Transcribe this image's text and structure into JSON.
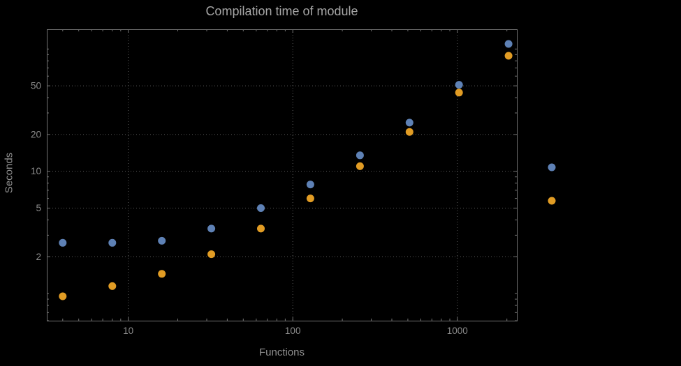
{
  "chart_data": {
    "type": "scatter",
    "title": "Compilation time of module",
    "xlabel": "Functions",
    "ylabel": "Seconds",
    "x_scale": "log",
    "y_scale": "log",
    "grid": true,
    "x_range": [
      3.2,
      2300
    ],
    "y_range": [
      0.6,
      145
    ],
    "x_ticks": [
      {
        "value": 10,
        "label": "10"
      },
      {
        "value": 100,
        "label": "100"
      },
      {
        "value": 1000,
        "label": "1000"
      }
    ],
    "y_ticks": [
      {
        "value": 2,
        "label": "2"
      },
      {
        "value": 5,
        "label": "5"
      },
      {
        "value": 10,
        "label": "10"
      },
      {
        "value": 20,
        "label": "20"
      },
      {
        "value": 50,
        "label": "50"
      }
    ],
    "x": [
      4,
      8,
      16,
      32,
      64,
      128,
      256,
      512,
      1024,
      2048
    ],
    "series": [
      {
        "name": "series-1",
        "color": "#5e81b5",
        "values": [
          2.6,
          2.6,
          2.7,
          3.4,
          5.0,
          7.8,
          13.5,
          25,
          51,
          110
        ]
      },
      {
        "name": "series-2",
        "color": "#e19c24",
        "values": [
          0.95,
          1.15,
          1.45,
          2.1,
          3.4,
          6.0,
          11,
          21,
          44,
          88
        ]
      }
    ],
    "legend": {
      "position": "right",
      "marker_x": 790,
      "markers": [
        {
          "series": "series-1",
          "color": "#5e81b5",
          "y": 240
        },
        {
          "series": "series-2",
          "color": "#e19c24",
          "y": 288
        }
      ]
    }
  },
  "colors": {
    "background": "#000000",
    "frame": "#737373",
    "grid": "#5c5c5c",
    "title_text": "#a6a6a6",
    "axis_label_text": "#8f8f8f",
    "tick_label_text": "#8c8c8c",
    "series1": "#5e81b5",
    "series2": "#e19c24"
  }
}
